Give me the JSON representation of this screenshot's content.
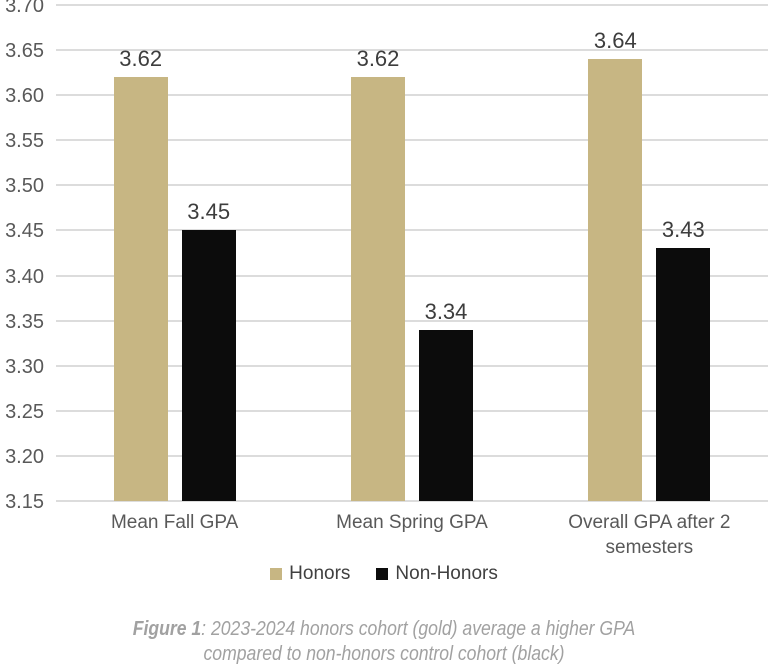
{
  "chart_data": {
    "type": "bar",
    "title": "",
    "xlabel": "",
    "ylabel": "",
    "categories": [
      "Mean Fall GPA",
      "Mean Spring GPA",
      "Overall GPA after 2 semesters"
    ],
    "series": [
      {
        "name": "Honors",
        "color": "#c7b683",
        "values": [
          3.62,
          3.62,
          3.64
        ]
      },
      {
        "name": "Non-Honors",
        "color": "#0c0c0c",
        "values": [
          3.45,
          3.34,
          3.43
        ]
      }
    ],
    "value_labels": [
      [
        "3.62",
        "3.62",
        "3.64"
      ],
      [
        "3.45",
        "3.34",
        "3.43"
      ]
    ],
    "y_ticks": [
      "3.70",
      "3.65",
      "3.60",
      "3.55",
      "3.50",
      "3.45",
      "3.40",
      "3.35",
      "3.30",
      "3.25",
      "3.20",
      "3.15"
    ],
    "ylim": [
      3.15,
      3.7
    ],
    "grid": true,
    "legend_position": "bottom",
    "legend": [
      "Honors",
      "Non-Honors"
    ]
  },
  "colors": {
    "honors": "#c7b683",
    "non_honors": "#0c0c0c",
    "gridline": "#dcdcdc",
    "axis_text": "#595959",
    "value_text": "#3d3d3d",
    "caption_text": "#a1a1a1"
  },
  "caption": {
    "figure_label": "Figure 1",
    "separator": ": ",
    "line1_rest": "2023-2024 honors cohort (gold) average a higher GPA",
    "line2": "compared to non-honors control cohort (black)"
  }
}
